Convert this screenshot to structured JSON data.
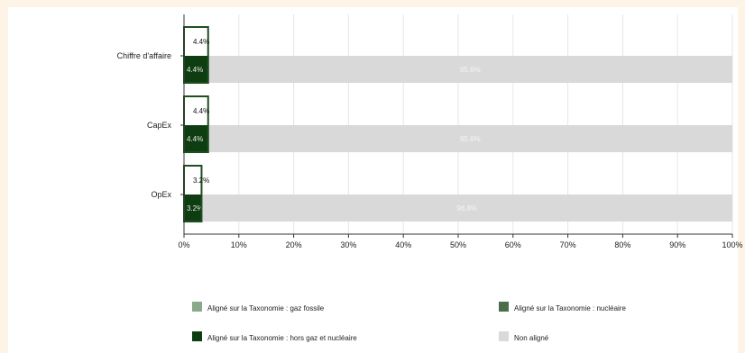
{
  "chart_data": {
    "type": "bar",
    "orientation": "horizontal",
    "stacked": true,
    "categories": [
      "Chiffre d'affaire",
      "CapEx",
      "OpEx"
    ],
    "series": [
      {
        "name": "Aligné sur la Taxonomie : gaz fossile",
        "values": [
          0,
          0,
          0
        ],
        "color": "#8aa88b"
      },
      {
        "name": "Aligné sur la Taxonomie : nucléaire",
        "values": [
          0,
          0,
          0
        ],
        "color": "#4a6e4a"
      },
      {
        "name": "Aligné sur la Taxonomie : hors gaz et nucléaire",
        "values": [
          4.4,
          4.4,
          3.2
        ],
        "color": "#0f3d12"
      },
      {
        "name": "Non aligné",
        "values": [
          95.6,
          95.6,
          96.8
        ],
        "color": "#d9d9d9"
      }
    ],
    "overlay_labels": [
      "4.4%",
      "4.4%",
      "3.2%"
    ],
    "bar_labels": {
      "aligned": [
        "4.4%",
        "4.4%",
        "3.2%"
      ],
      "non_aligned": [
        "95.6%",
        "95.6%",
        "96.8%"
      ]
    },
    "x_ticks": [
      "0%",
      "10%",
      "20%",
      "30%",
      "40%",
      "50%",
      "60%",
      "70%",
      "80%",
      "90%",
      "100%"
    ],
    "xlim": [
      0,
      100
    ],
    "grid": true,
    "legend_position": "bottom"
  }
}
